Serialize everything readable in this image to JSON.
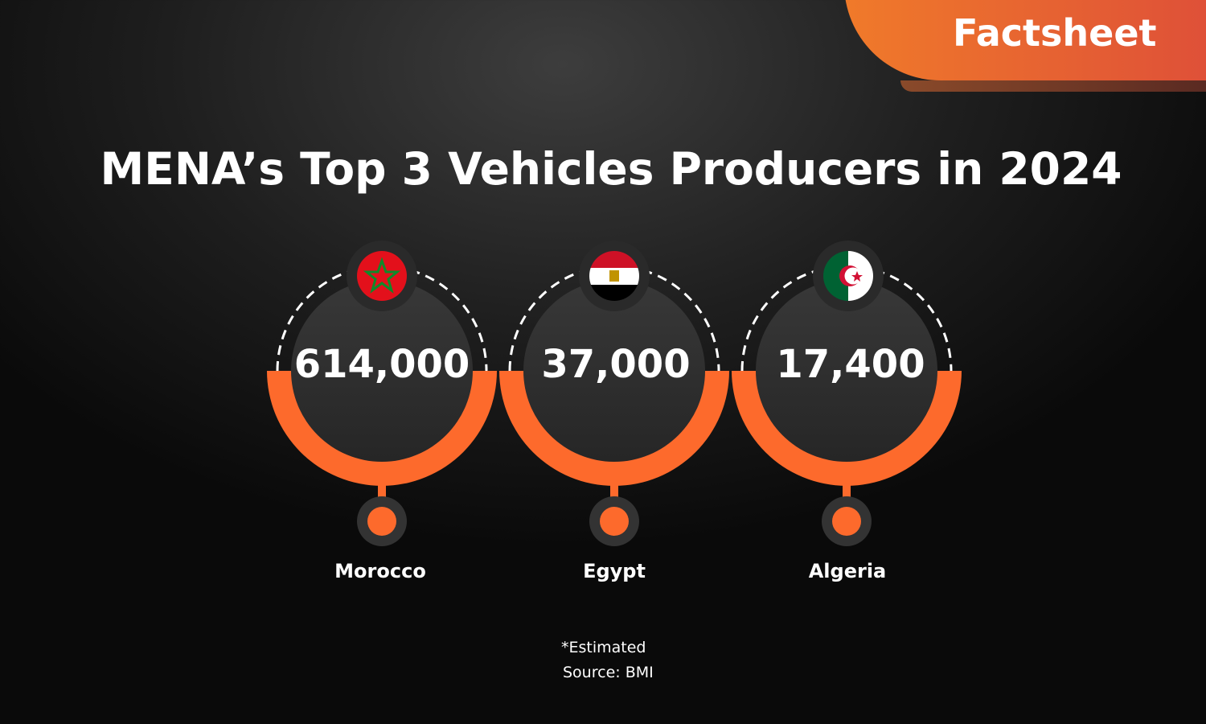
{
  "badge": "Factsheet",
  "title": "MENA’s Top 3 Vehicles Producers in 2024",
  "accent": "#fd6a2c",
  "producers": [
    {
      "country": "Morocco",
      "value": "614,000",
      "flag": "morocco-flag-icon"
    },
    {
      "country": "Egypt",
      "value": "37,000",
      "flag": "egypt-flag-icon"
    },
    {
      "country": "Algeria",
      "value": "17,400",
      "flag": "algeria-flag-icon"
    }
  ],
  "footnote": "*Estimated",
  "source": "Source: BMI"
}
